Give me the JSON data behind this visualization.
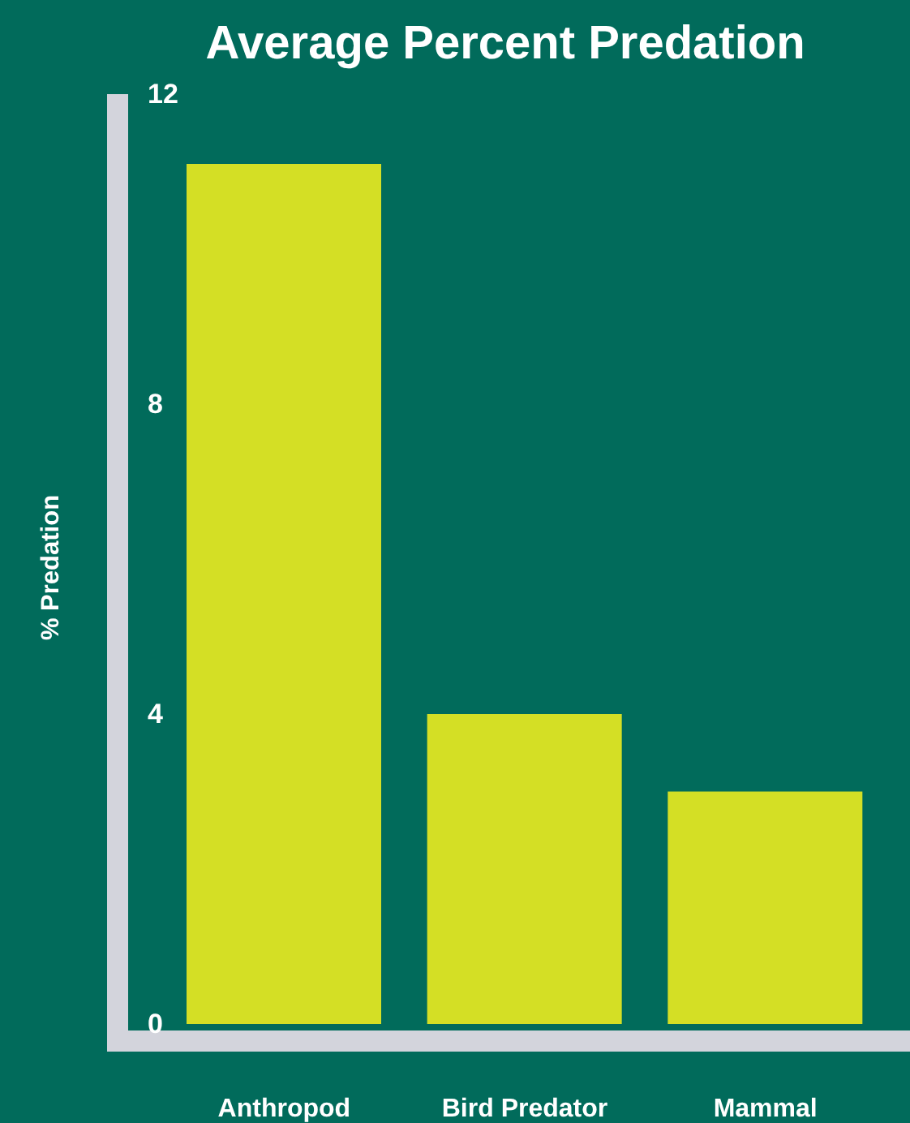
{
  "chart_data": {
    "type": "bar",
    "title": "Average Percent Predation",
    "ylabel": "% Predation",
    "categories": [
      "Anthropod",
      "Bird Predator",
      "Mammal"
    ],
    "values": [
      11.1,
      4,
      3
    ],
    "color": "#d4df25",
    "ylim": [
      0,
      12
    ],
    "yticks": [
      0,
      4,
      8,
      12
    ]
  }
}
